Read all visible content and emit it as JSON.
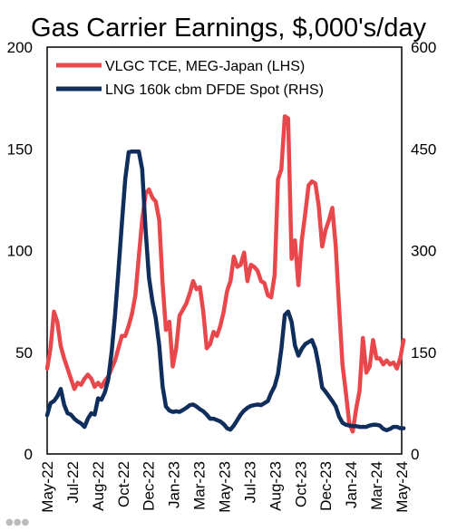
{
  "chart_data": {
    "type": "line",
    "title": "Gas Carrier Earnings, $,000's/day",
    "x": {
      "start": "2022-05",
      "end": "2024-05",
      "tick_labels": [
        "May-22",
        "Jul-22",
        "Aug-22",
        "Oct-22",
        "Dec-22",
        "Jan-23",
        "Mar-23",
        "May-23",
        "Jul-23",
        "Aug-23",
        "Oct-23",
        "Dec-23",
        "Jan-24",
        "Mar-24",
        "May-24"
      ]
    },
    "y_left": {
      "ylim": [
        0,
        200
      ],
      "ticks": [
        0,
        50,
        100,
        150,
        200
      ]
    },
    "y_right": {
      "ylim": [
        0,
        600
      ],
      "ticks": [
        0,
        150,
        300,
        450,
        600
      ]
    },
    "grid": false,
    "legend": "top",
    "series": [
      {
        "name": "VLGC TCE, MEG-Japan (LHS)",
        "axis": "left",
        "color": "#e8474b",
        "points": [
          [
            "2022-05-01",
            42
          ],
          [
            "2022-05-08",
            52
          ],
          [
            "2022-05-15",
            70
          ],
          [
            "2022-05-22",
            65
          ],
          [
            "2022-05-29",
            53
          ],
          [
            "2022-06-05",
            47
          ],
          [
            "2022-06-12",
            42
          ],
          [
            "2022-06-19",
            37
          ],
          [
            "2022-06-26",
            32
          ],
          [
            "2022-07-03",
            35
          ],
          [
            "2022-07-10",
            34
          ],
          [
            "2022-07-17",
            37
          ],
          [
            "2022-07-24",
            39
          ],
          [
            "2022-07-31",
            37
          ],
          [
            "2022-08-07",
            33
          ],
          [
            "2022-08-14",
            35
          ],
          [
            "2022-08-21",
            33
          ],
          [
            "2022-08-28",
            36
          ],
          [
            "2022-09-04",
            38
          ],
          [
            "2022-09-11",
            42
          ],
          [
            "2022-09-18",
            46
          ],
          [
            "2022-09-25",
            52
          ],
          [
            "2022-10-02",
            58
          ],
          [
            "2022-10-09",
            58
          ],
          [
            "2022-10-16",
            63
          ],
          [
            "2022-10-23",
            69
          ],
          [
            "2022-10-30",
            78
          ],
          [
            "2022-11-06",
            97
          ],
          [
            "2022-11-13",
            115
          ],
          [
            "2022-11-20",
            128
          ],
          [
            "2022-11-27",
            130
          ],
          [
            "2022-12-04",
            126
          ],
          [
            "2022-12-11",
            124
          ],
          [
            "2022-12-18",
            115
          ],
          [
            "2022-12-25",
            84
          ],
          [
            "2023-01-01",
            61
          ],
          [
            "2023-01-08",
            65
          ],
          [
            "2023-01-15",
            43
          ],
          [
            "2023-01-22",
            52
          ],
          [
            "2023-01-29",
            68
          ],
          [
            "2023-02-05",
            71
          ],
          [
            "2023-02-12",
            74
          ],
          [
            "2023-02-19",
            79
          ],
          [
            "2023-02-26",
            85
          ],
          [
            "2023-03-05",
            81
          ],
          [
            "2023-03-12",
            82
          ],
          [
            "2023-03-19",
            70
          ],
          [
            "2023-03-26",
            52
          ],
          [
            "2023-04-02",
            54
          ],
          [
            "2023-04-09",
            60
          ],
          [
            "2023-04-16",
            58
          ],
          [
            "2023-04-23",
            63
          ],
          [
            "2023-04-30",
            70
          ],
          [
            "2023-05-07",
            80
          ],
          [
            "2023-05-14",
            85
          ],
          [
            "2023-05-21",
            97
          ],
          [
            "2023-05-28",
            92
          ],
          [
            "2023-06-04",
            93
          ],
          [
            "2023-06-11",
            99
          ],
          [
            "2023-06-18",
            85
          ],
          [
            "2023-06-25",
            93
          ],
          [
            "2023-07-02",
            92
          ],
          [
            "2023-07-09",
            90
          ],
          [
            "2023-07-16",
            85
          ],
          [
            "2023-07-23",
            84
          ],
          [
            "2023-07-30",
            78
          ],
          [
            "2023-08-06",
            77
          ],
          [
            "2023-08-13",
            88
          ],
          [
            "2023-08-20",
            135
          ],
          [
            "2023-08-27",
            140
          ],
          [
            "2023-09-03",
            166
          ],
          [
            "2023-09-10",
            165
          ],
          [
            "2023-09-17",
            96
          ],
          [
            "2023-09-24",
            105
          ],
          [
            "2023-10-01",
            83
          ],
          [
            "2023-10-08",
            105
          ],
          [
            "2023-10-15",
            118
          ],
          [
            "2023-10-22",
            132
          ],
          [
            "2023-10-29",
            134
          ],
          [
            "2023-11-05",
            133
          ],
          [
            "2023-11-12",
            122
          ],
          [
            "2023-11-19",
            102
          ],
          [
            "2023-11-26",
            110
          ],
          [
            "2023-12-03",
            115
          ],
          [
            "2023-12-10",
            121
          ],
          [
            "2023-12-17",
            102
          ],
          [
            "2023-12-24",
            72
          ],
          [
            "2023-12-31",
            44
          ],
          [
            "2024-01-07",
            30
          ],
          [
            "2024-01-14",
            15
          ],
          [
            "2024-01-21",
            11
          ],
          [
            "2024-01-28",
            22
          ],
          [
            "2024-02-04",
            31
          ],
          [
            "2024-02-11",
            57
          ],
          [
            "2024-02-18",
            40
          ],
          [
            "2024-02-25",
            43
          ],
          [
            "2024-03-03",
            56
          ],
          [
            "2024-03-10",
            47
          ],
          [
            "2024-03-17",
            47
          ],
          [
            "2024-03-24",
            44
          ],
          [
            "2024-03-31",
            46
          ],
          [
            "2024-04-07",
            44
          ],
          [
            "2024-04-14",
            45
          ],
          [
            "2024-04-21",
            42
          ],
          [
            "2024-04-28",
            47
          ],
          [
            "2024-05-05",
            56
          ]
        ]
      },
      {
        "name": "LNG 160k cbm DFDE Spot (RHS)",
        "axis": "right",
        "color": "#102e5c",
        "points": [
          [
            "2022-05-01",
            57
          ],
          [
            "2022-05-08",
            75
          ],
          [
            "2022-05-15",
            78
          ],
          [
            "2022-05-22",
            85
          ],
          [
            "2022-05-29",
            96
          ],
          [
            "2022-06-05",
            73
          ],
          [
            "2022-06-12",
            60
          ],
          [
            "2022-06-19",
            58
          ],
          [
            "2022-06-26",
            52
          ],
          [
            "2022-07-03",
            48
          ],
          [
            "2022-07-10",
            45
          ],
          [
            "2022-07-17",
            40
          ],
          [
            "2022-07-24",
            52
          ],
          [
            "2022-07-31",
            60
          ],
          [
            "2022-08-07",
            58
          ],
          [
            "2022-08-14",
            82
          ],
          [
            "2022-08-21",
            80
          ],
          [
            "2022-08-28",
            91
          ],
          [
            "2022-09-04",
            110
          ],
          [
            "2022-09-11",
            150
          ],
          [
            "2022-09-18",
            205
          ],
          [
            "2022-09-25",
            270
          ],
          [
            "2022-10-02",
            340
          ],
          [
            "2022-10-09",
            405
          ],
          [
            "2022-10-16",
            445
          ],
          [
            "2022-10-23",
            446
          ],
          [
            "2022-10-30",
            446
          ],
          [
            "2022-11-06",
            446
          ],
          [
            "2022-11-13",
            420
          ],
          [
            "2022-11-20",
            330
          ],
          [
            "2022-11-27",
            260
          ],
          [
            "2022-12-04",
            225
          ],
          [
            "2022-12-11",
            200
          ],
          [
            "2022-12-18",
            160
          ],
          [
            "2022-12-25",
            100
          ],
          [
            "2023-01-01",
            70
          ],
          [
            "2023-01-08",
            64
          ],
          [
            "2023-01-15",
            62
          ],
          [
            "2023-01-22",
            63
          ],
          [
            "2023-01-29",
            62
          ],
          [
            "2023-02-05",
            65
          ],
          [
            "2023-02-12",
            68
          ],
          [
            "2023-02-19",
            72
          ],
          [
            "2023-02-26",
            73
          ],
          [
            "2023-03-05",
            70
          ],
          [
            "2023-03-12",
            66
          ],
          [
            "2023-03-19",
            63
          ],
          [
            "2023-03-26",
            58
          ],
          [
            "2023-04-02",
            52
          ],
          [
            "2023-04-09",
            52
          ],
          [
            "2023-04-16",
            50
          ],
          [
            "2023-04-23",
            48
          ],
          [
            "2023-04-30",
            44
          ],
          [
            "2023-05-07",
            38
          ],
          [
            "2023-05-14",
            36
          ],
          [
            "2023-05-21",
            42
          ],
          [
            "2023-05-28",
            50
          ],
          [
            "2023-06-04",
            58
          ],
          [
            "2023-06-11",
            64
          ],
          [
            "2023-06-18",
            68
          ],
          [
            "2023-06-25",
            71
          ],
          [
            "2023-07-02",
            72
          ],
          [
            "2023-07-09",
            73
          ],
          [
            "2023-07-16",
            72
          ],
          [
            "2023-07-23",
            75
          ],
          [
            "2023-07-30",
            78
          ],
          [
            "2023-08-06",
            90
          ],
          [
            "2023-08-13",
            100
          ],
          [
            "2023-08-20",
            118
          ],
          [
            "2023-08-27",
            155
          ],
          [
            "2023-09-03",
            205
          ],
          [
            "2023-09-10",
            210
          ],
          [
            "2023-09-17",
            195
          ],
          [
            "2023-09-24",
            160
          ],
          [
            "2023-10-01",
            145
          ],
          [
            "2023-10-08",
            155
          ],
          [
            "2023-10-15",
            162
          ],
          [
            "2023-10-22",
            165
          ],
          [
            "2023-10-29",
            168
          ],
          [
            "2023-11-05",
            155
          ],
          [
            "2023-11-12",
            130
          ],
          [
            "2023-11-19",
            98
          ],
          [
            "2023-11-26",
            92
          ],
          [
            "2023-12-03",
            85
          ],
          [
            "2023-12-10",
            78
          ],
          [
            "2023-12-17",
            70
          ],
          [
            "2023-12-24",
            55
          ],
          [
            "2023-12-31",
            46
          ],
          [
            "2024-01-07",
            43
          ],
          [
            "2024-01-14",
            42
          ],
          [
            "2024-01-21",
            41
          ],
          [
            "2024-01-28",
            41
          ],
          [
            "2024-02-04",
            40
          ],
          [
            "2024-02-11",
            40
          ],
          [
            "2024-02-18",
            40
          ],
          [
            "2024-02-25",
            42
          ],
          [
            "2024-03-03",
            43
          ],
          [
            "2024-03-10",
            43
          ],
          [
            "2024-03-17",
            42
          ],
          [
            "2024-03-24",
            37
          ],
          [
            "2024-03-31",
            35
          ],
          [
            "2024-04-07",
            37
          ],
          [
            "2024-04-14",
            40
          ],
          [
            "2024-04-21",
            40
          ],
          [
            "2024-04-28",
            38
          ],
          [
            "2024-05-05",
            38
          ]
        ]
      }
    ]
  }
}
